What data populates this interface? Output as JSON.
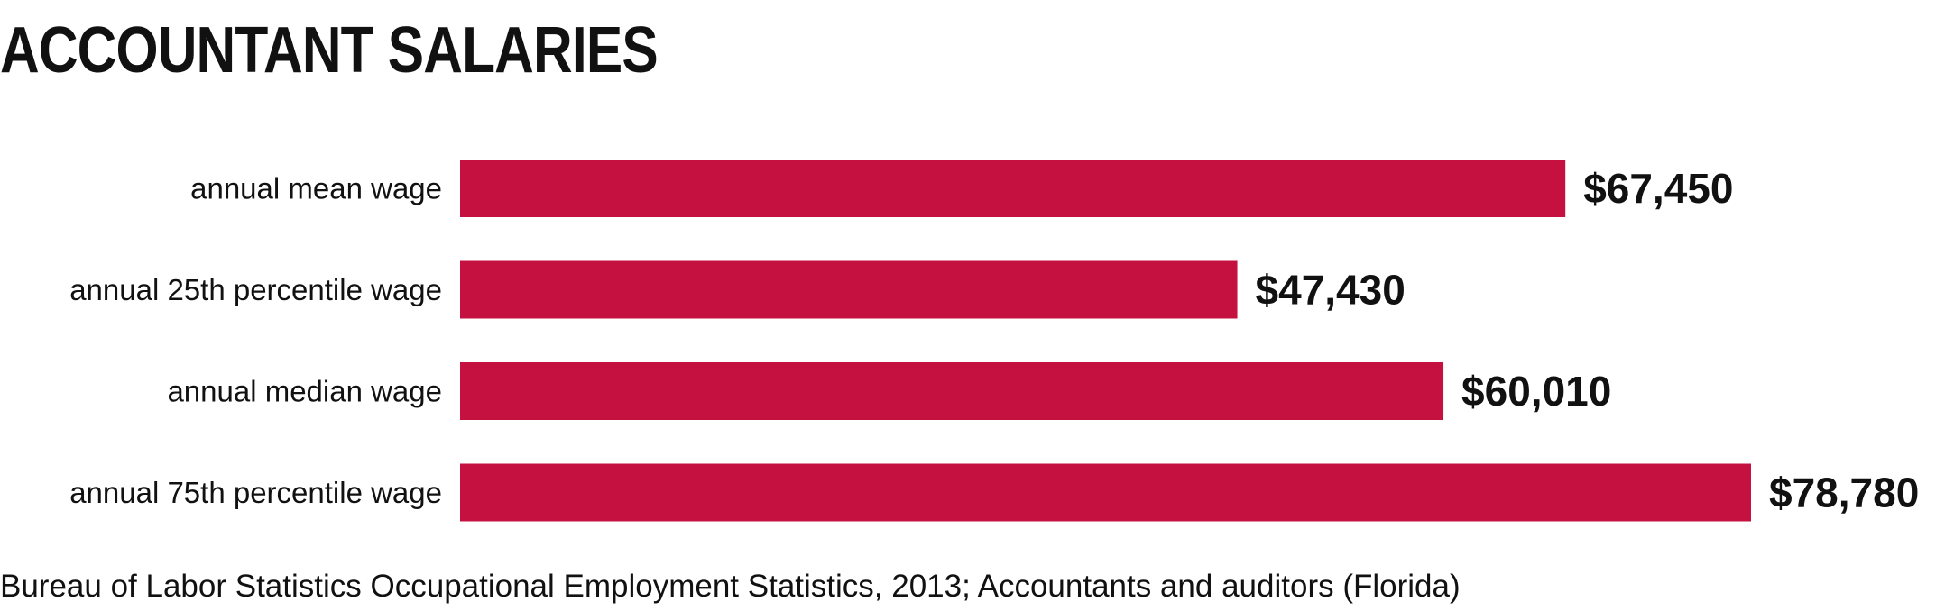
{
  "chart_data": {
    "type": "bar",
    "orientation": "horizontal",
    "title": "ACCOUNTANT SALARIES",
    "categories": [
      "annual mean wage",
      "annual 25th percentile wage",
      "annual median wage",
      "annual 75th percentile wage"
    ],
    "values": [
      67450,
      47430,
      60010,
      78780
    ],
    "value_labels": [
      "$67,450",
      "$47,430",
      "$60,010",
      "$78,780"
    ],
    "xlim": [
      0,
      78780
    ],
    "grid": false,
    "legend": "none",
    "bar_color": "#c41140"
  },
  "source": "Bureau of Labor Statistics Occupational Employment Statistics, 2013; Accountants and auditors (Florida)"
}
